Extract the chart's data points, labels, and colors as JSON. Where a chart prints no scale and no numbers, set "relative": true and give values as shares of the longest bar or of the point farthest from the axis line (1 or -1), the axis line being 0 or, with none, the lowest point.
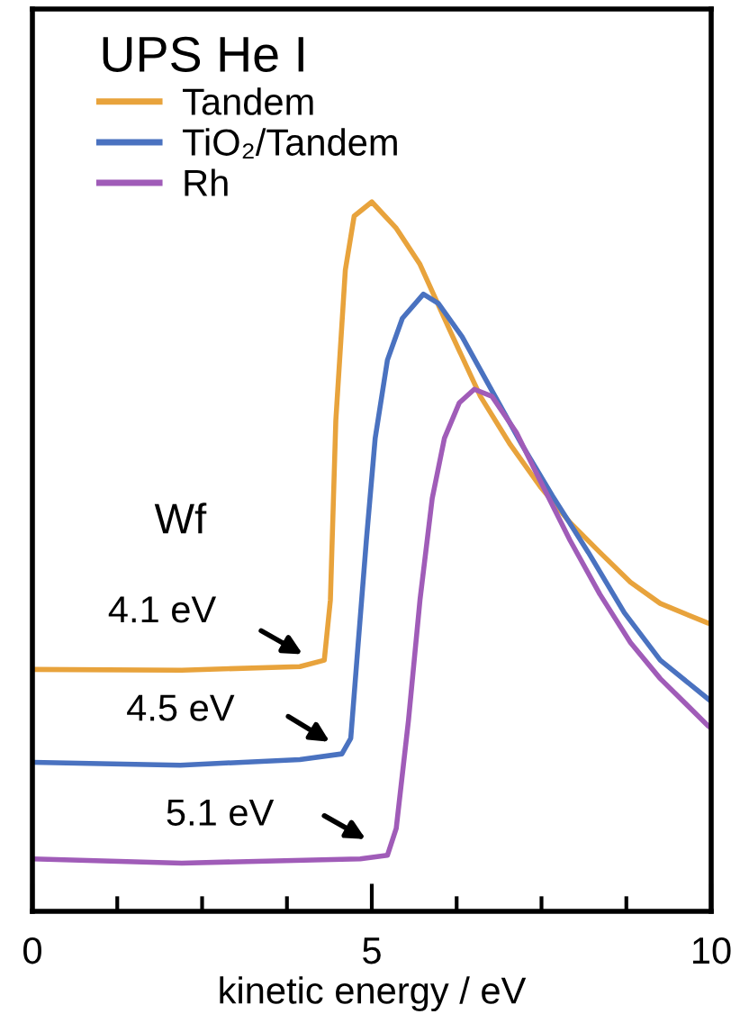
{
  "chart_data": {
    "type": "line",
    "relative": true,
    "xlabel": "kinetic energy / eV",
    "legend_title": "UPS He I",
    "legend": "top left",
    "grid": false,
    "xlim": [
      0,
      10
    ],
    "xticks": [
      0,
      {
        "value": 1.25,
        "label": null
      },
      {
        "value": 2.5,
        "label": null
      },
      {
        "value": 3.75,
        "label": null
      },
      5,
      {
        "value": 6.25,
        "label": null
      },
      {
        "value": 7.5,
        "label": null
      },
      {
        "value": 8.75,
        "label": null
      },
      10
    ],
    "series": [
      {
        "name": "Tandem",
        "color": "#e8a33c",
        "x": [
          0,
          2.2,
          3.94,
          4.3,
          4.39,
          4.47,
          4.61,
          4.74,
          5.0,
          5.36,
          5.71,
          6.15,
          6.6,
          7.04,
          7.48,
          7.92,
          8.36,
          8.81,
          9.25,
          9.96,
          10
        ],
        "values": [
          0.341,
          0.34,
          0.345,
          0.354,
          0.439,
          0.692,
          0.904,
          0.98,
          1.0,
          0.963,
          0.912,
          0.819,
          0.726,
          0.658,
          0.599,
          0.548,
          0.506,
          0.464,
          0.434,
          0.406,
          0.405
        ]
      },
      {
        "name": "TiO₂/Tandem",
        "color": "#4a72c0",
        "x": [
          0,
          2.18,
          3.94,
          4.56,
          4.69,
          4.78,
          4.92,
          5.05,
          5.23,
          5.45,
          5.76,
          5.98,
          6.33,
          6.77,
          7.21,
          7.66,
          8.19,
          8.72,
          9.25,
          9.96,
          10
        ],
        "values": [
          0.21,
          0.206,
          0.214,
          0.222,
          0.244,
          0.354,
          0.523,
          0.667,
          0.777,
          0.836,
          0.87,
          0.857,
          0.81,
          0.734,
          0.658,
          0.586,
          0.506,
          0.421,
          0.354,
          0.299,
          0.296
        ]
      },
      {
        "name": "Rh",
        "color": "#a05cb8",
        "x": [
          0,
          2.2,
          4.83,
          5.23,
          5.36,
          5.54,
          5.71,
          5.89,
          6.07,
          6.29,
          6.51,
          6.77,
          7.13,
          7.48,
          7.92,
          8.36,
          8.81,
          9.25,
          9.96,
          10
        ],
        "values": [
          0.074,
          0.068,
          0.074,
          0.079,
          0.117,
          0.269,
          0.439,
          0.582,
          0.667,
          0.717,
          0.736,
          0.726,
          0.675,
          0.607,
          0.523,
          0.447,
          0.379,
          0.328,
          0.261,
          0.258
        ]
      }
    ],
    "annotations": [
      "Wf",
      "4.1 eV",
      "4.5 eV",
      "5.1 eV"
    ]
  }
}
